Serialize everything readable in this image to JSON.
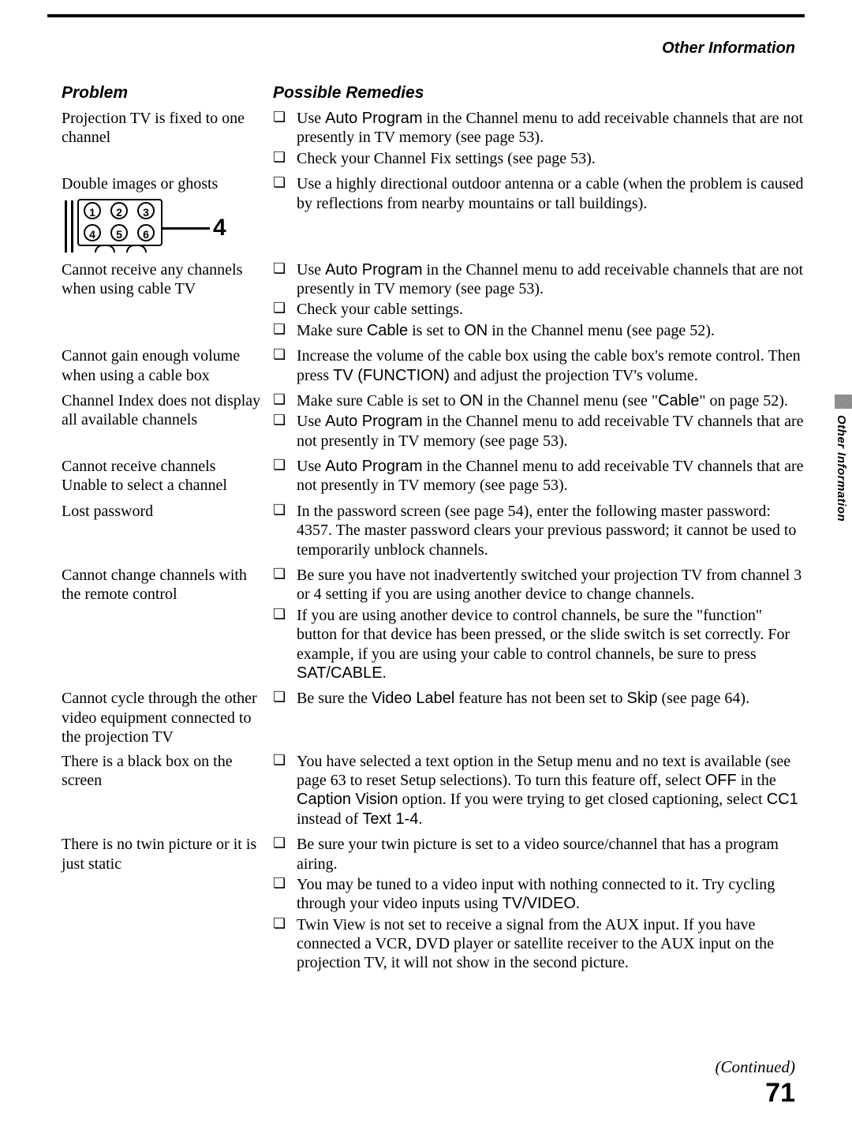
{
  "header": {
    "section": "Other Information"
  },
  "columns": {
    "problem": "Problem",
    "remedy": "Possible Remedies"
  },
  "side_tab": "Other Information",
  "continued": "(Continued)",
  "page": "71",
  "ghost_diagram": {
    "numbers": [
      "1",
      "2",
      "3",
      "4",
      "5",
      "6"
    ],
    "label": "4"
  },
  "rows": [
    {
      "problem": "Projection TV is fixed to one channel",
      "remedies": [
        "Use <span class='sans'>Auto Program</span> in the Channel menu to add receivable channels that are not presently in TV memory (see page 53).",
        "Check your Channel Fix settings (see page 53)."
      ]
    },
    {
      "problem": "Double images or ghosts",
      "has_diagram": true,
      "remedies": [
        "Use a highly directional outdoor antenna or a cable (when the problem is caused by reflections from nearby mountains or tall buildings)."
      ]
    },
    {
      "problem": "Cannot receive any channels when using cable TV",
      "remedies": [
        "Use <span class='sans'>Auto Program</span> in the Channel menu to add receivable channels that are not presently in TV memory (see page 53).",
        "Check your cable settings.",
        "Make sure <span class='sans'>Cable</span> is set to <span class='sans'>ON</span> in the Channel menu (see page 52)."
      ]
    },
    {
      "problem": "Cannot gain enough volume when using a cable box",
      "remedies": [
        "Increase the volume of the cable box using the cable box's remote control. Then press <span class='sans'>TV (FUNCTION)</span> and adjust the projection TV's volume."
      ]
    },
    {
      "problem": "Channel Index does not display all available channels",
      "remedies": [
        "Make sure Cable is set to <span class='sans'>ON</span> in the Channel menu (see \"<span class='sans'>Cable</span>\" on page 52).",
        "Use <span class='sans'>Auto Program</span> in the Channel menu to add receivable TV channels that are not presently in TV memory (see page 53)."
      ]
    },
    {
      "problem": "Cannot receive channels<br>Unable to select a channel",
      "remedies": [
        "Use <span class='sans'>Auto Program</span> in the Channel menu to add receivable TV channels that are not presently in TV memory (see page 53)."
      ]
    },
    {
      "problem": "Lost password",
      "remedies": [
        "In the password screen (see page 54), enter the following master password: 4357. The master password clears your previous password; it cannot be used to temporarily unblock channels."
      ]
    },
    {
      "problem": "Cannot change channels with the remote control",
      "remedies": [
        "Be sure you have not inadvertently switched your projection TV from channel 3 or 4 setting if you are using another device to change channels.",
        "If you are using another device to control channels, be sure the \"function\" button for that device has been pressed, or the slide switch is set correctly. For example, if you are using your cable to control channels, be sure to press <span class='sans'>SAT/CABLE</span>."
      ]
    },
    {
      "problem": "Cannot cycle through the other video equipment connected to the projection TV",
      "remedies": [
        "Be sure the <span class='sans'>Video Label</span> feature has not been set to <span class='sans'>Skip</span> (see page 64)."
      ]
    },
    {
      "problem": "There is a black box on the screen",
      "remedies": [
        "You have selected a text option in the Setup menu and no text is available (see page 63 to reset Setup selections). To turn this feature off, select <span class='sans'>OFF</span> in the <span class='sans'>Caption Vision</span> option. If you were trying to get closed captioning, select <span class='sans'>CC1</span> instead of <span class='sans'>Text 1-4</span>."
      ]
    },
    {
      "problem": "There is no twin picture or it is just static",
      "remedies": [
        "Be sure your twin picture is set to a video source/channel that has a program airing.",
        "You may be tuned to a video input with nothing connected to it. Try cycling through your video inputs using <span class='sans'>TV/VIDEO</span>.",
        "Twin View is not set to receive a signal from the AUX input. If you have connected a VCR, DVD player or satellite receiver to the AUX input on the projection TV, it will not show in the second picture."
      ]
    }
  ]
}
